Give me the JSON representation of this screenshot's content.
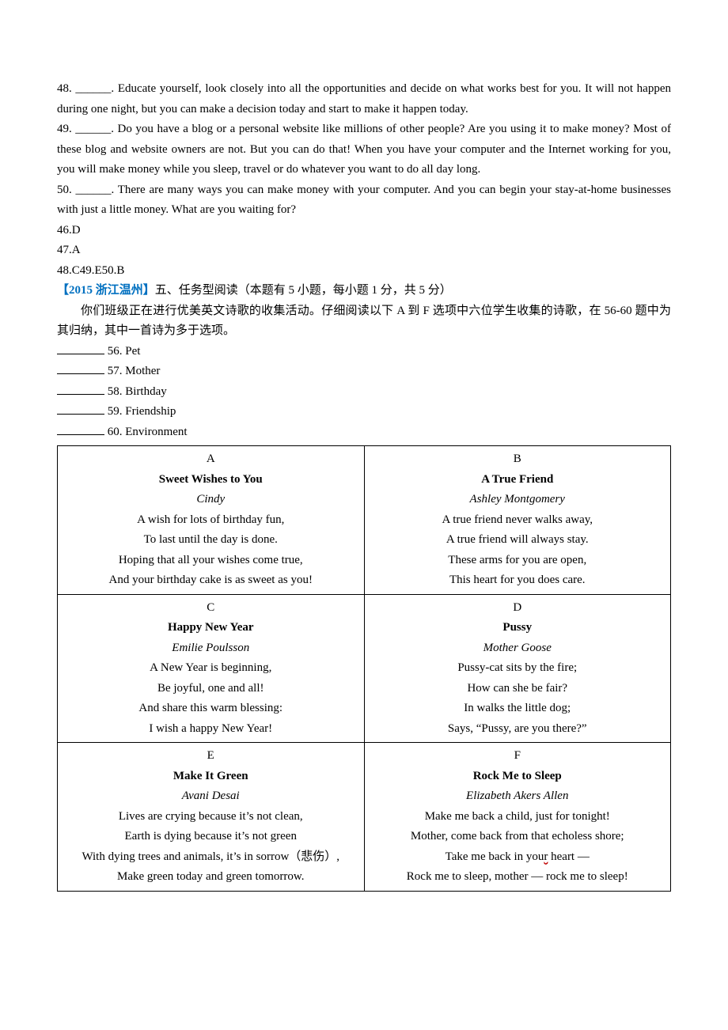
{
  "passage": {
    "q48": "48. ______. Educate yourself, look closely into all the opportunities and decide on what works best for you. It will not happen during one night, but you can make a decision today and start to make it happen today.",
    "q49": "49. ______. Do you have a blog or a personal website like millions of other people? Are you using it to make money? Most of these blog and website owners are not. But you can do that! When you have your computer and the Internet working for you, you will make money while you sleep, travel or do whatever you want to do all day long.",
    "q50": "50. ______. There are many ways you can make money with your computer. And you can begin your stay-at-home businesses with just a little money. What are you waiting for?"
  },
  "answers": {
    "a46": "46.D",
    "a47": "47.A",
    "a48_50": "48.C49.E50.B"
  },
  "section": {
    "bracket": "【2015 浙江温州】",
    "title_rest": "五、任务型阅读（本题有 5 小题，每小题 1 分，共 5 分）",
    "instruction": "你们班级正在进行优美英文诗歌的收集活动。仔细阅读以下 A 到 F 选项中六位学生收集的诗歌，在 56-60 题中为其归纳，其中一首诗为多于选项。"
  },
  "matching": {
    "m56": " 56. Pet",
    "m57": " 57. Mother",
    "m58": " 58. Birthday",
    "m59": " 59. Friendship",
    "m60": " 60. Environment"
  },
  "poems": {
    "A": {
      "letter": "A",
      "title": "Sweet Wishes to You",
      "author": "Cindy",
      "lines": [
        "A wish for lots of birthday fun,",
        "To last until the day is done.",
        "Hoping that all your wishes come true,",
        "And your birthday cake is as sweet as you!"
      ]
    },
    "B": {
      "letter": "B",
      "title": "A True Friend",
      "author": "Ashley Montgomery",
      "lines": [
        "A true friend never walks away,",
        "A true friend will always stay.",
        "These arms for you are open,",
        "This heart for you does care."
      ]
    },
    "C": {
      "letter": "C",
      "title": "Happy New Year",
      "author": "Emilie Poulsson",
      "lines": [
        "A New Year is beginning,",
        "Be joyful, one and all!",
        "And share this warm blessing:",
        "I wish a happy New Year!"
      ]
    },
    "D": {
      "letter": "D",
      "title": "Pussy",
      "author": "Mother Goose",
      "lines": [
        "Pussy-cat sits by the fire;",
        "How can she be fair?",
        "In walks the little dog;",
        "Says, “Pussy, are you there?”"
      ]
    },
    "E": {
      "letter": "E",
      "title": "Make It Green",
      "author": "Avani Desai",
      "lines": [
        "Lives are crying because it’s not clean,",
        "Earth is dying because it’s not green",
        "With dying trees and animals, it’s in sorrow（悲伤）,",
        "Make green today and green tomorrow."
      ]
    },
    "F": {
      "letter": "F",
      "title": "Rock Me to Sleep",
      "author": "Elizabeth Akers Allen",
      "line1": "Make me back a child, just for tonight!",
      "line2": "Mother, come back from that echoless shore;",
      "line3_pre": "Take me back in you",
      "line3_wavy": "r",
      "line3_post": " heart —",
      "line4": "Rock me to sleep, mother — rock me to sleep!"
    }
  }
}
